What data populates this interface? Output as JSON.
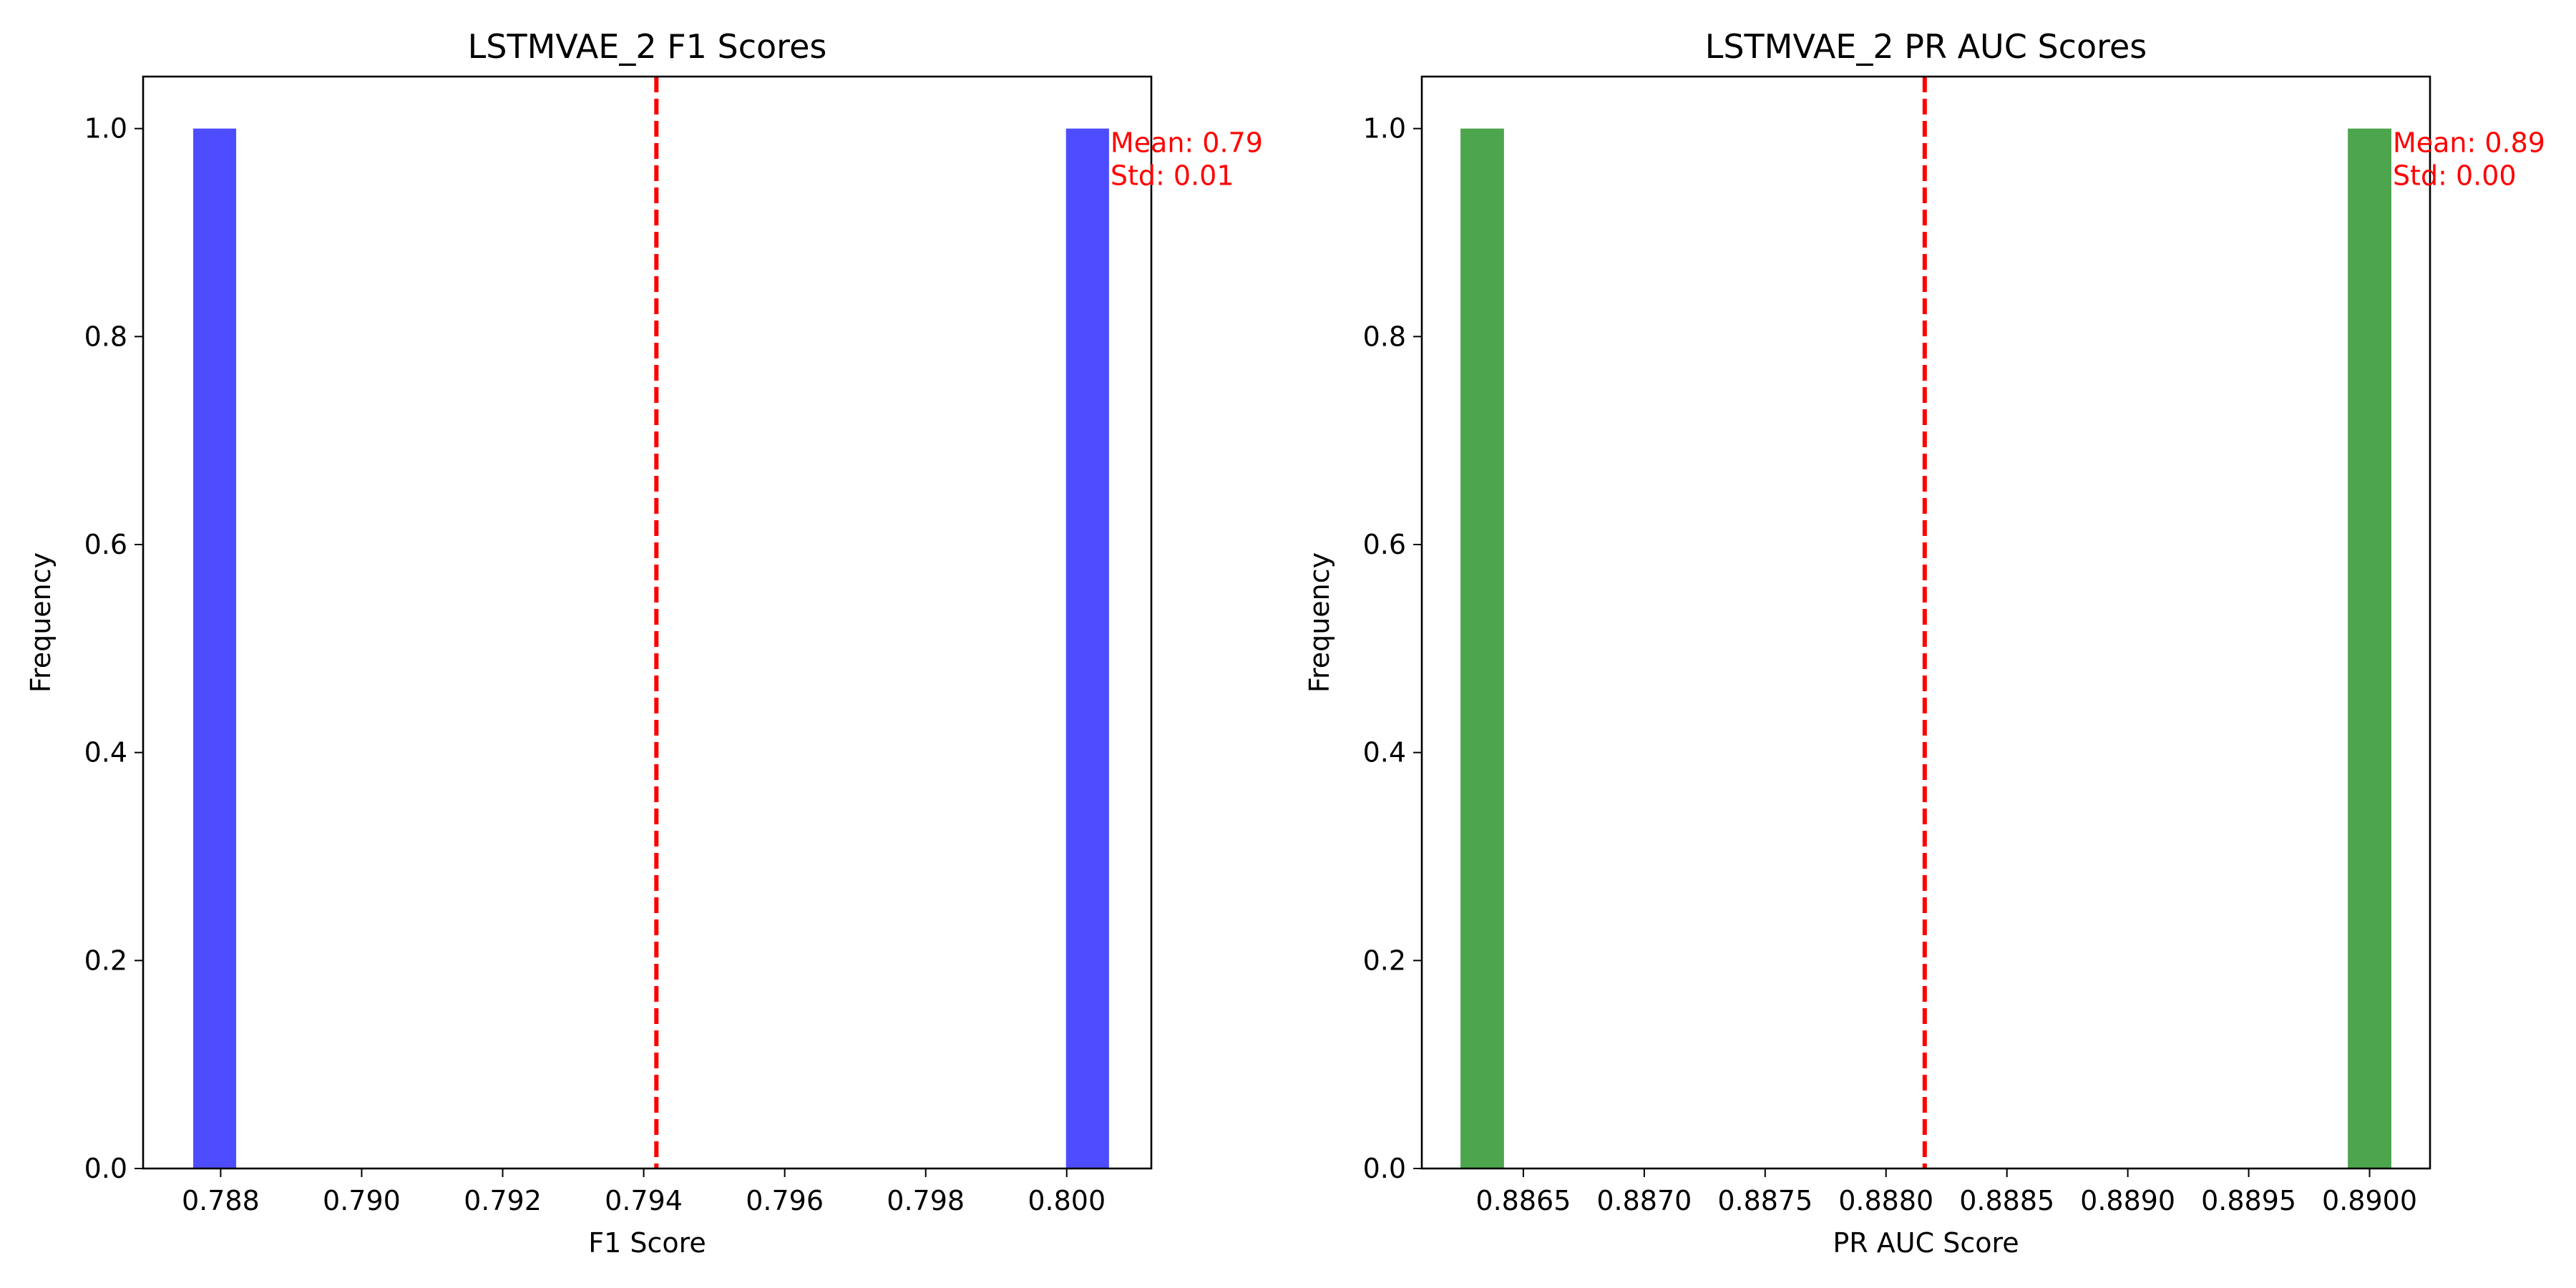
{
  "chart_data": [
    {
      "type": "bar",
      "title": "LSTMVAE_2 F1 Scores",
      "xlabel": "F1 Score",
      "ylabel": "Frequency",
      "xlim": [
        0.7869,
        0.8012
      ],
      "ylim": [
        0,
        1.05
      ],
      "xticks": [
        0.788,
        0.79,
        0.792,
        0.794,
        0.796,
        0.798,
        0.8
      ],
      "xtick_labels": [
        "0.788",
        "0.790",
        "0.792",
        "0.794",
        "0.796",
        "0.798",
        "0.800"
      ],
      "yticks": [
        0.0,
        0.2,
        0.4,
        0.6,
        0.8,
        1.0
      ],
      "ytick_labels": [
        "0.0",
        "0.2",
        "0.4",
        "0.6",
        "0.8",
        "1.0"
      ],
      "bars": [
        {
          "x0": 0.78761,
          "x1": 0.78822,
          "value": 1
        },
        {
          "x0": 0.79999,
          "x1": 0.8006,
          "value": 1
        }
      ],
      "bar_color": "#4d4dff",
      "mean_line": {
        "x": 0.79418,
        "color": "#ff0000"
      },
      "annotation": {
        "lines": [
          "Mean: 0.79",
          "Std: 0.01"
        ],
        "color": "#ff0000"
      },
      "grid": false
    },
    {
      "type": "bar",
      "title": "LSTMVAE_2 PR AUC Scores",
      "xlabel": "PR AUC Score",
      "ylabel": "Frequency",
      "xlim": [
        0.88608,
        0.89025
      ],
      "ylim": [
        0,
        1.05
      ],
      "xticks": [
        0.8865,
        0.887,
        0.8875,
        0.888,
        0.8885,
        0.889,
        0.8895,
        0.89
      ],
      "xtick_labels": [
        "0.8865",
        "0.8870",
        "0.8875",
        "0.8880",
        "0.8885",
        "0.8890",
        "0.8895",
        "0.8900"
      ],
      "yticks": [
        0.0,
        0.2,
        0.4,
        0.6,
        0.8,
        1.0
      ],
      "ytick_labels": [
        "0.0",
        "0.2",
        "0.4",
        "0.6",
        "0.8",
        "1.0"
      ],
      "bars": [
        {
          "x0": 0.88624,
          "x1": 0.88642,
          "value": 1
        },
        {
          "x0": 0.88991,
          "x1": 0.89009,
          "value": 1
        }
      ],
      "bar_color": "#4da64d",
      "mean_line": {
        "x": 0.88816,
        "color": "#ff0000"
      },
      "annotation": {
        "lines": [
          "Mean: 0.89",
          "Std: 0.00"
        ],
        "color": "#ff0000"
      },
      "grid": false
    }
  ]
}
